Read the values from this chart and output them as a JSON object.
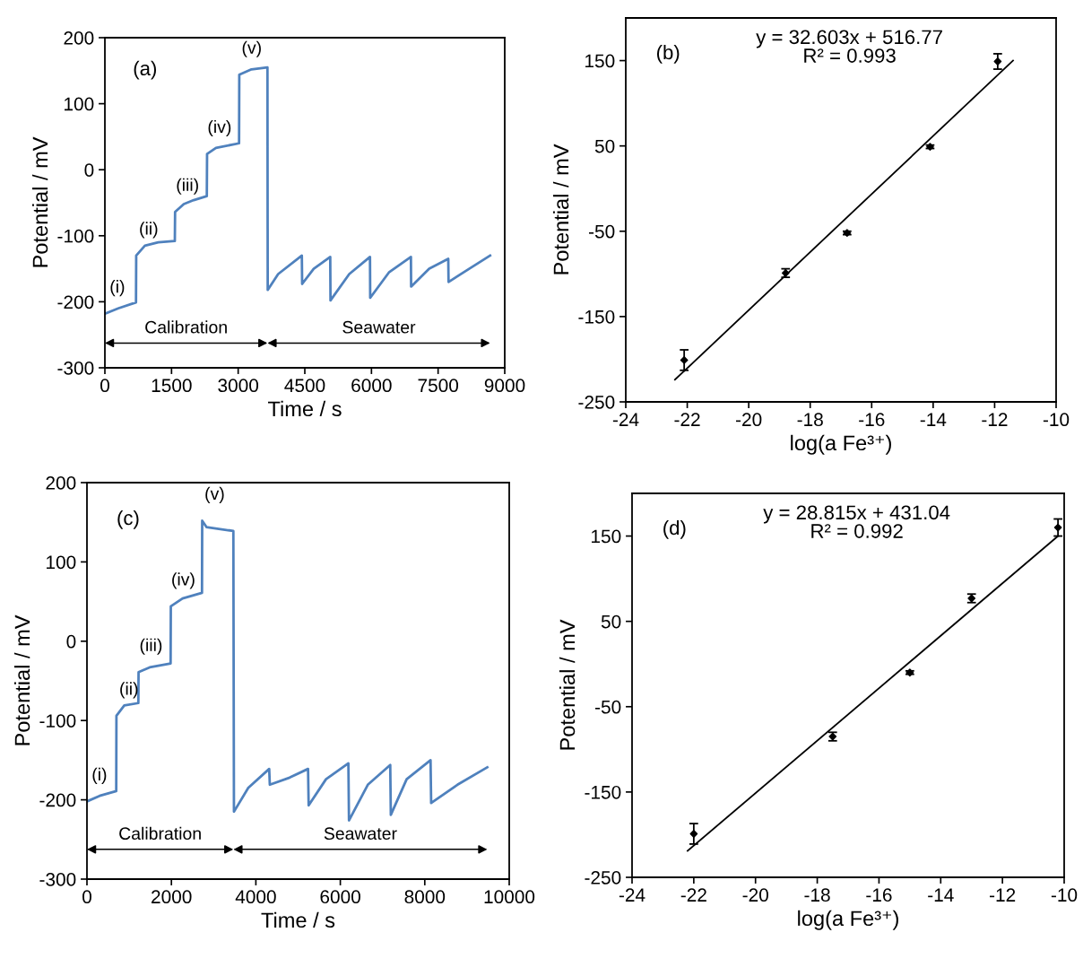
{
  "chart_data": [
    {
      "type": "line",
      "xlabel": "Time / s",
      "ylabel": "Potential / mV",
      "xlim": [
        0,
        9000
      ],
      "xticks": [
        0,
        1500,
        3000,
        4500,
        6000,
        7500,
        9000
      ],
      "ylim": [
        -300,
        200
      ],
      "yticks": [
        -300,
        -200,
        -100,
        0,
        100,
        200
      ],
      "grid": false,
      "legend": false,
      "marker": "none",
      "line_style": "solid",
      "series": [
        {
          "color": "#4f81bd",
          "x": [
            0,
            300,
            700,
            705,
            900,
            1200,
            1574,
            1580,
            1776,
            2000,
            2294,
            2300,
            2500,
            3020,
            3025,
            3300,
            3659,
            3665,
            3900,
            4433,
            4440,
            4700,
            5072,
            5078,
            5500,
            5967,
            5972,
            6400,
            6888,
            6893,
            7300,
            7729,
            7735,
            8200,
            8671
          ],
          "values": [
            -218,
            -210,
            -201,
            -130,
            -115,
            -110,
            -108,
            -64,
            -52,
            -46,
            -40,
            24,
            33,
            40,
            144,
            152,
            155,
            -182,
            -158,
            -130,
            -173,
            -150,
            -132,
            -198,
            -158,
            -132,
            -194,
            -155,
            -132,
            -177,
            -150,
            -135,
            -170,
            -150,
            -130
          ]
        }
      ],
      "annotations": [
        "(a)",
        "(i)",
        "(ii)",
        "(iii)",
        "(iv)",
        "(v)",
        "Calibration",
        "Seawater"
      ]
    },
    {
      "type": "scatter",
      "xlabel": "log(a Fe³⁺)",
      "ylabel": "Potential / mV",
      "xlim": [
        -24,
        -10
      ],
      "xticks": [
        -24,
        -22,
        -20,
        -18,
        -16,
        -14,
        -12,
        -10
      ],
      "ylim": [
        -250,
        200
      ],
      "yticks": [
        -250,
        -150,
        -50,
        50,
        150
      ],
      "grid": false,
      "legend": false,
      "series": [
        {
          "type": "scatter",
          "color": "#000000",
          "marker": "diamond",
          "x": [
            -22.1,
            -18.8,
            -16.8,
            -14.1,
            -11.9
          ],
          "values": [
            -201,
            -99,
            -52,
            49,
            149
          ],
          "errors": [
            12,
            5,
            2,
            2,
            9
          ]
        },
        {
          "type": "line",
          "color": "#000000",
          "marker": "none",
          "line_style": "solid",
          "x": [
            -22.4,
            -11.4
          ],
          "values": [
            -224,
            150
          ]
        }
      ],
      "annotations": [
        "(b)",
        "y = 32.603x + 516.77\nR² = 0.993"
      ]
    },
    {
      "type": "line",
      "xlabel": "Time / s",
      "ylabel": "Potential / mV",
      "xlim": [
        0,
        10000
      ],
      "xticks": [
        0,
        2000,
        4000,
        6000,
        8000,
        10000
      ],
      "ylim": [
        -300,
        200
      ],
      "yticks": [
        -300,
        -200,
        -100,
        0,
        100,
        200
      ],
      "grid": false,
      "legend": false,
      "marker": "none",
      "line_style": "solid",
      "series": [
        {
          "color": "#4f81bd",
          "x": [
            0,
            300,
            693,
            698,
            884,
            1217,
            1222,
            1485,
            1981,
            1986,
            2264,
            2724,
            2729,
            2830,
            3467,
            3481,
            3820,
            4316,
            4330,
            4800,
            5236,
            5250,
            5661,
            6191,
            6205,
            6651,
            7182,
            7196,
            7571,
            8137,
            8151,
            8774,
            9481
          ],
          "values": [
            -202,
            -195,
            -189,
            -94,
            -81,
            -78,
            -39,
            -33,
            -28,
            44,
            54,
            61,
            152,
            144,
            139,
            -215,
            -185,
            -161,
            -181,
            -172,
            -161,
            -207,
            -174,
            -154,
            -226,
            -181,
            -156,
            -219,
            -174,
            -150,
            -204,
            -181,
            -159
          ]
        }
      ],
      "annotations": [
        "(c)",
        "(i)",
        "(ii)",
        "(iii)",
        "(iv)",
        "(v)",
        "Calibration",
        "Seawater"
      ]
    },
    {
      "type": "scatter",
      "xlabel": "log(a Fe³⁺)",
      "ylabel": "Potential / mV",
      "xlim": [
        -24,
        -10
      ],
      "xticks": [
        -24,
        -22,
        -20,
        -18,
        -16,
        -14,
        -12,
        -10
      ],
      "ylim": [
        -250,
        200
      ],
      "yticks": [
        -250,
        -150,
        -50,
        50,
        150
      ],
      "grid": false,
      "legend": false,
      "series": [
        {
          "type": "scatter",
          "color": "#000000",
          "marker": "diamond",
          "x": [
            -22.0,
            -17.5,
            -15.0,
            -13.0,
            -10.2
          ],
          "values": [
            -199,
            -85,
            -10,
            77,
            160
          ],
          "errors": [
            12,
            5,
            2,
            5,
            10
          ]
        },
        {
          "type": "line",
          "color": "#000000",
          "marker": "none",
          "line_style": "solid",
          "x": [
            -22.2,
            -10.2
          ],
          "values": [
            -219,
            150
          ]
        }
      ],
      "annotations": [
        "(d)",
        "y = 28.815x + 431.04\nR² = 0.992"
      ]
    }
  ]
}
